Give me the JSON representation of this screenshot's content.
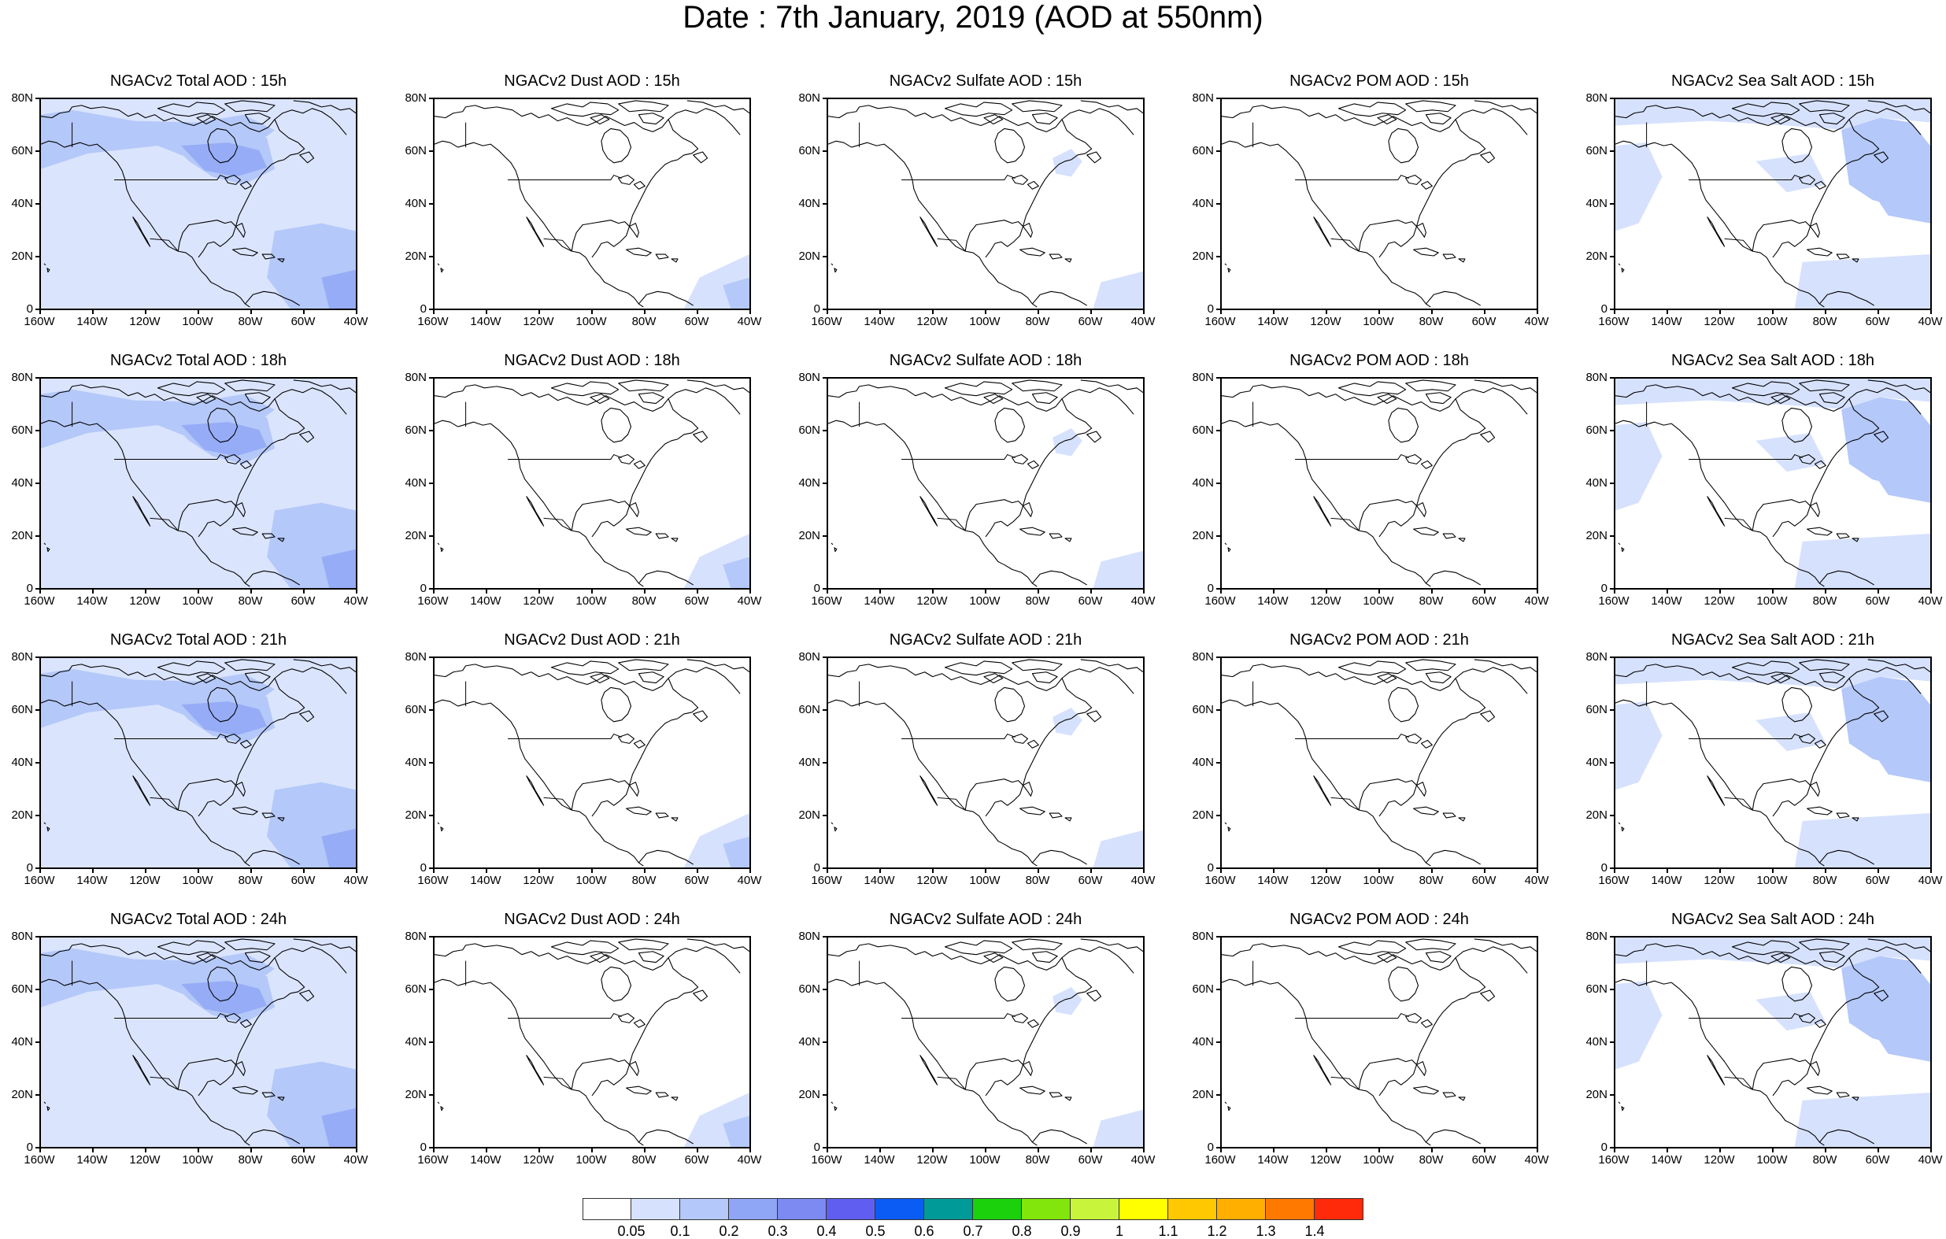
{
  "title": "Date : 7th January, 2019 (AOD at 550nm)",
  "lat_labels": [
    "80N",
    "60N",
    "40N",
    "20N",
    "0"
  ],
  "lon_labels": [
    "160W",
    "140W",
    "120W",
    "100W",
    "80W",
    "60W",
    "40W"
  ],
  "colors": {
    "pale": "#d6e1fd",
    "light": "#b4c8f9",
    "med": "#8fa5f5"
  },
  "panels": [
    {
      "title": "NGACv2 Total AOD : 15h",
      "kind": "total"
    },
    {
      "title": "NGACv2 Dust AOD : 15h",
      "kind": "dust"
    },
    {
      "title": "NGACv2 Sulfate AOD : 15h",
      "kind": "sulfate"
    },
    {
      "title": "NGACv2 POM AOD : 15h",
      "kind": "pom"
    },
    {
      "title": "NGACv2 Sea Salt AOD : 15h",
      "kind": "seasalt"
    },
    {
      "title": "NGACv2 Total AOD : 18h",
      "kind": "total"
    },
    {
      "title": "NGACv2 Dust AOD : 18h",
      "kind": "dust"
    },
    {
      "title": "NGACv2 Sulfate AOD : 18h",
      "kind": "sulfate"
    },
    {
      "title": "NGACv2 POM AOD : 18h",
      "kind": "pom"
    },
    {
      "title": "NGACv2 Sea Salt AOD : 18h",
      "kind": "seasalt"
    },
    {
      "title": "NGACv2 Total AOD : 21h",
      "kind": "total"
    },
    {
      "title": "NGACv2 Dust AOD : 21h",
      "kind": "dust"
    },
    {
      "title": "NGACv2 Sulfate AOD : 21h",
      "kind": "sulfate"
    },
    {
      "title": "NGACv2 POM AOD : 21h",
      "kind": "pom"
    },
    {
      "title": "NGACv2 Sea Salt AOD : 21h",
      "kind": "seasalt"
    },
    {
      "title": "NGACv2 Total AOD : 24h",
      "kind": "total"
    },
    {
      "title": "NGACv2 Dust AOD : 24h",
      "kind": "dust"
    },
    {
      "title": "NGACv2 Sulfate AOD : 24h",
      "kind": "sulfate"
    },
    {
      "title": "NGACv2 POM AOD : 24h",
      "kind": "pom"
    },
    {
      "title": "NGACv2 Sea Salt  AOD : 24h",
      "kind": "seasalt"
    }
  ],
  "colorbar": {
    "colors": [
      "#ffffff",
      "#d6e1fd",
      "#b4c8f9",
      "#8fa5f5",
      "#7c8af2",
      "#5f5ef0",
      "#0b5cf4",
      "#009a99",
      "#1ad10c",
      "#82e60c",
      "#c8f53c",
      "#ffff00",
      "#ffc800",
      "#ffaf00",
      "#ff7800",
      "#ff2a0a"
    ],
    "labels": [
      "0.05",
      "0.1",
      "0.2",
      "0.3",
      "0.4",
      "0.5",
      "0.6",
      "0.7",
      "0.8",
      "0.9",
      "1",
      "1.1",
      "1.2",
      "1.3",
      "1.4"
    ]
  }
}
